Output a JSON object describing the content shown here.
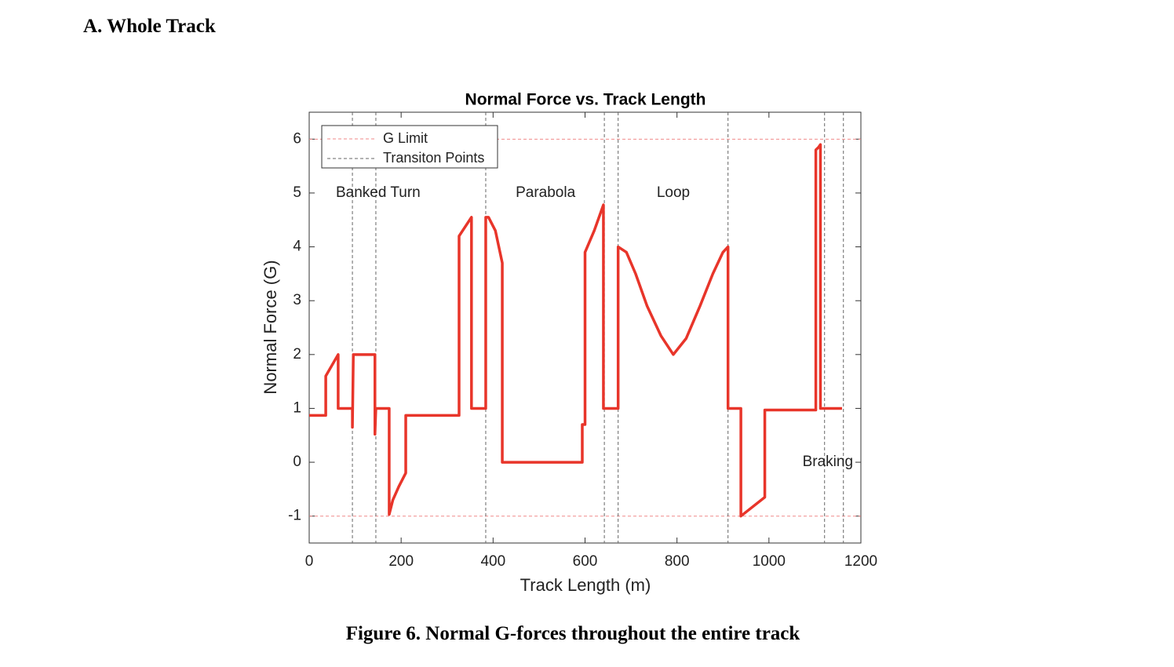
{
  "heading": "A.  Whole Track",
  "caption": "Figure 6.  Normal G-forces throughout the entire track",
  "chart_data": {
    "type": "line",
    "title": "Normal Force vs. Track Length",
    "x_label": "Track Length (m)",
    "y_label": "Normal Force (G)",
    "x": [
      0,
      36,
      36,
      63,
      63,
      94,
      94,
      96,
      143,
      143,
      145,
      174,
      174,
      182,
      195,
      210,
      210,
      326,
      326,
      353,
      353,
      384,
      384,
      390,
      405,
      420,
      420,
      594,
      594,
      600,
      600,
      620,
      640,
      640,
      672,
      672,
      690,
      710,
      735,
      765,
      792,
      820,
      850,
      878,
      900,
      911,
      911,
      939,
      939,
      991,
      991,
      1102,
      1102,
      1108,
      1112,
      1112,
      1159
    ],
    "values": [
      0.87,
      0.87,
      1.6,
      2.0,
      1.0,
      1.0,
      0.65,
      2.0,
      2.0,
      0.52,
      1.0,
      1.0,
      -0.97,
      -0.7,
      -0.45,
      -0.2,
      0.87,
      0.87,
      4.2,
      4.55,
      1.0,
      1.0,
      4.55,
      4.55,
      4.3,
      3.7,
      0,
      0,
      0.7,
      0.7,
      3.9,
      4.3,
      4.78,
      1.0,
      1.0,
      4.0,
      3.9,
      3.5,
      2.9,
      2.35,
      2.0,
      2.3,
      2.9,
      3.5,
      3.9,
      4.0,
      1.0,
      1.0,
      -1.0,
      -0.65,
      0.97,
      0.97,
      5.8,
      5.85,
      5.9,
      1.0,
      1.0
    ],
    "color": "#e8352a",
    "g_limit": {
      "name": "G Limit",
      "values": [
        6,
        -1
      ],
      "color": "#f08a8a"
    },
    "transition_points": {
      "name": "Transiton Points",
      "x": [
        94,
        145,
        384,
        642,
        672,
        911,
        1121,
        1162
      ],
      "color": "#666666"
    },
    "annotations": [
      {
        "text": "Banked Turn",
        "x": 150,
        "y": 5
      },
      {
        "text": "Parabola",
        "x": 514,
        "y": 5
      },
      {
        "text": "Loop",
        "x": 792,
        "y": 5
      },
      {
        "text": "Braking",
        "x": 1128,
        "y": 0
      }
    ],
    "xlim": [
      0,
      1200
    ],
    "ylim": [
      -1.5,
      6.5
    ],
    "xticks": [
      0,
      200,
      400,
      600,
      800,
      1000,
      1200
    ],
    "yticks": [
      -1,
      0,
      1,
      2,
      3,
      4,
      5,
      6
    ]
  }
}
